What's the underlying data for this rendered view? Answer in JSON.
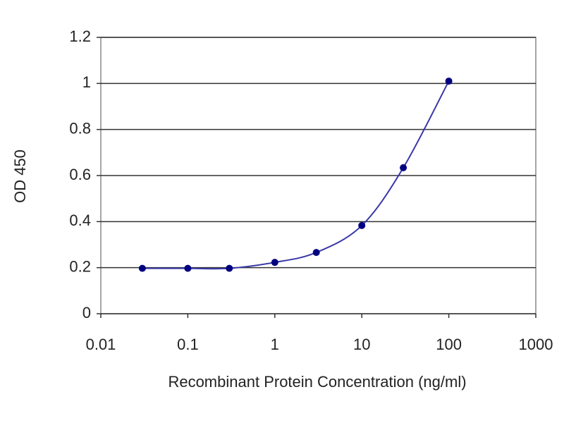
{
  "chart_data": {
    "type": "line",
    "xlabel": "Recombinant Protein Concentration (ng/ml)",
    "ylabel": "OD 450",
    "xscale": "log",
    "x": [
      0.03,
      0.1,
      0.3,
      1,
      3,
      10,
      30,
      100
    ],
    "series": [
      {
        "color": "#000080",
        "values": [
          0.197,
          0.197,
          0.197,
          0.223,
          0.266,
          0.383,
          0.634,
          1.01
        ]
      }
    ],
    "xlim": [
      0.01,
      1000
    ],
    "xticks": [
      0.01,
      0.1,
      1,
      10,
      100,
      1000
    ],
    "ylim": [
      0,
      1.2
    ],
    "yticks": [
      0,
      0.2,
      0.4,
      0.6,
      0.8,
      1,
      1.2
    ],
    "grid": true
  }
}
